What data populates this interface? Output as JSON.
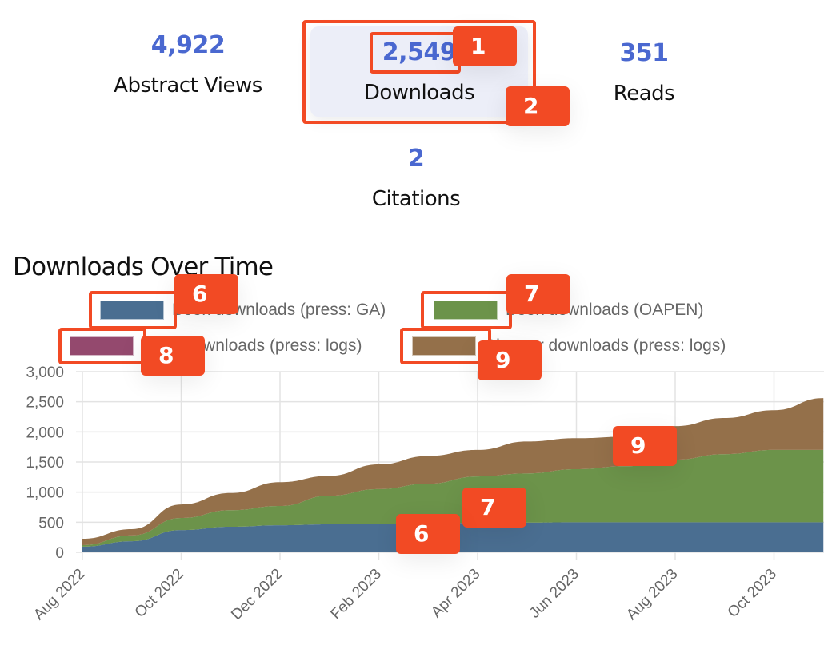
{
  "stats": {
    "abstract_views": {
      "value": "4,922",
      "label": "Abstract Views"
    },
    "downloads": {
      "value": "2,549",
      "label": "Downloads"
    },
    "reads": {
      "value": "351",
      "label": "Reads"
    },
    "citations": {
      "value": "2",
      "label": "Citations"
    }
  },
  "chart_title": "Downloads Over Time",
  "legend": [
    {
      "label": "Book downloads (press: GA)",
      "color": "#4a6e91"
    },
    {
      "label": "Book downloads (OAPEN)",
      "color": "#6c934a"
    },
    {
      "label": "Book downloads (press: logs)",
      "color": "#94496e"
    },
    {
      "label": "Chapter downloads (press: logs)",
      "color": "#94704a"
    }
  ],
  "markers": {
    "m1": "1",
    "m2": "2",
    "m6": "6",
    "m7": "7",
    "m8": "8",
    "m9": "9",
    "m6_chart": "6",
    "m7_chart": "7",
    "m9_chart": "9"
  },
  "chart_data": {
    "type": "area",
    "stacked": true,
    "title": "Downloads Over Time",
    "xlabel": "",
    "ylabel": "",
    "ylim": [
      0,
      3000
    ],
    "yticks": [
      "0",
      "500",
      "1,000",
      "1,500",
      "2,000",
      "2,500",
      "3,000"
    ],
    "xtick_labels": [
      "Aug 2022",
      "Oct 2022",
      "Dec 2022",
      "Feb 2023",
      "Apr 2023",
      "Jun 2023",
      "Aug 2023",
      "Oct 2023"
    ],
    "x": [
      "Aug 2022",
      "Sep 2022",
      "Oct 2022",
      "Nov 2022",
      "Dec 2022",
      "Jan 2023",
      "Feb 2023",
      "Mar 2023",
      "Apr 2023",
      "May 2023",
      "Jun 2023",
      "Jul 2023",
      "Aug 2023",
      "Sep 2023",
      "Oct 2023",
      "Nov 2023"
    ],
    "grid": true,
    "legend_position": "top",
    "series": [
      {
        "name": "Book downloads (press: GA)",
        "color": "#4a6e91",
        "values": [
          95,
          185,
          370,
          425,
          450,
          465,
          465,
          480,
          490,
          495,
          500,
          500,
          500,
          500,
          500,
          500
        ]
      },
      {
        "name": "Book downloads (OAPEN)",
        "color": "#6c934a",
        "values": [
          25,
          95,
          200,
          275,
          320,
          475,
          585,
          660,
          770,
          815,
          880,
          930,
          1040,
          1130,
          1200,
          1200
        ]
      },
      {
        "name": "Book downloads (press: logs)",
        "color": "#94496e",
        "values": [
          0,
          0,
          0,
          0,
          0,
          0,
          0,
          0,
          0,
          0,
          0,
          0,
          0,
          0,
          0,
          0
        ]
      },
      {
        "name": "Chapter downloads (press: logs)",
        "color": "#94704a",
        "values": [
          105,
          105,
          225,
          285,
          395,
          330,
          410,
          460,
          440,
          530,
          515,
          490,
          555,
          600,
          660,
          860
        ]
      }
    ]
  }
}
